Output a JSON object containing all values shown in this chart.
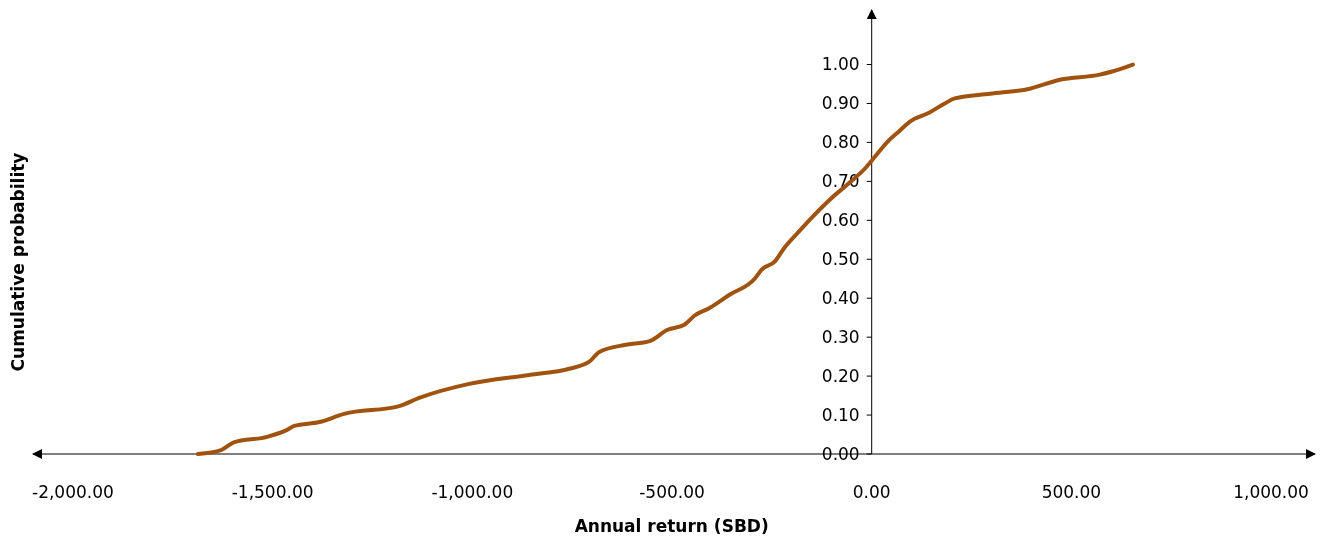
{
  "chart_data": {
    "type": "line",
    "xlabel": "Annual return (SBD)",
    "ylabel": "Cumulative probability",
    "xlim": [
      -2100,
      1110
    ],
    "ylim": [
      0,
      1.14
    ],
    "xticks": [
      {
        "value": -2000,
        "label": "-2,000.00"
      },
      {
        "value": -1500,
        "label": "-1,500.00"
      },
      {
        "value": -1000,
        "label": "-1,000.00"
      },
      {
        "value": -500,
        "label": "-500.00"
      },
      {
        "value": 0,
        "label": "0.00"
      },
      {
        "value": 500,
        "label": "500.00"
      },
      {
        "value": 1000,
        "label": "1,000.00"
      }
    ],
    "yticks": [
      {
        "value": 0,
        "label": "0.00"
      },
      {
        "value": 0.1,
        "label": "0.10"
      },
      {
        "value": 0.2,
        "label": "0.20"
      },
      {
        "value": 0.3,
        "label": "0.30"
      },
      {
        "value": 0.4,
        "label": "0.40"
      },
      {
        "value": 0.5,
        "label": "0.50"
      },
      {
        "value": 0.6,
        "label": "0.60"
      },
      {
        "value": 0.7,
        "label": "0.70"
      },
      {
        "value": 0.8,
        "label": "0.80"
      },
      {
        "value": 0.9,
        "label": "0.90"
      },
      {
        "value": 1,
        "label": "1.00"
      }
    ],
    "grid": false,
    "marker": "none",
    "line_style": "solid",
    "series": [
      {
        "color": "#a0520f",
        "x": [
          -1687,
          -1629,
          -1597,
          -1514,
          -1464,
          -1446,
          -1383,
          -1321,
          -1183,
          -1133,
          -1008,
          -857,
          -757,
          -707,
          -682,
          -619,
          -556,
          -511,
          -469,
          -444,
          -406,
          -356,
          -293,
          -276,
          -243,
          -218,
          -185,
          -150,
          -105,
          -55,
          -15,
          8,
          40,
          70,
          95,
          145,
          183,
          208,
          296,
          396,
          471,
          571,
          602,
          654
        ],
        "values": [
          0,
          0.01,
          0.03,
          0.044,
          0.062,
          0.072,
          0.082,
          0.103,
          0.123,
          0.144,
          0.18,
          0.203,
          0.219,
          0.237,
          0.262,
          0.28,
          0.29,
          0.319,
          0.332,
          0.355,
          0.375,
          0.409,
          0.45,
          0.473,
          0.494,
          0.53,
          0.568,
          0.607,
          0.653,
          0.697,
          0.735,
          0.763,
          0.802,
          0.83,
          0.853,
          0.877,
          0.9,
          0.913,
          0.925,
          0.938,
          0.961,
          0.974,
          0.982,
          1.0
        ]
      }
    ]
  }
}
